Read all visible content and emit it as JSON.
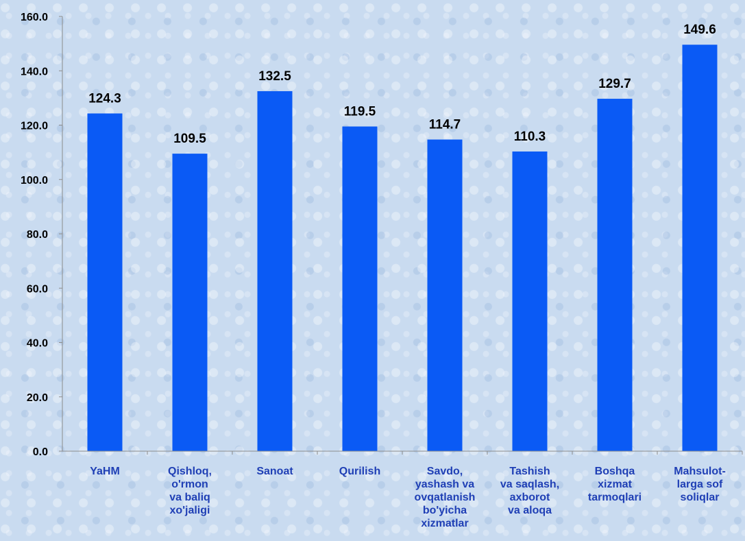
{
  "chart_data": {
    "type": "bar",
    "categories": [
      [
        "YaHM"
      ],
      [
        "Qishloq,",
        "o'rmon",
        "va baliq",
        "xo'jaligi"
      ],
      [
        "Sanoat"
      ],
      [
        "Qurilish"
      ],
      [
        "Savdo,",
        "yashash va",
        "ovqatlanish",
        "bo'yicha",
        "xizmatlar"
      ],
      [
        "Tashish",
        "va saqlash,",
        "axborot",
        "va aloqa"
      ],
      [
        "Boshqa",
        "xizmat",
        "tarmoqlari"
      ],
      [
        "Mahsulot-",
        "larga sof",
        "soliqlar"
      ]
    ],
    "values": [
      124.3,
      109.5,
      132.5,
      119.5,
      114.7,
      110.3,
      129.7,
      149.6
    ],
    "value_labels": [
      "124.3",
      "109.5",
      "132.5",
      "119.5",
      "114.7",
      "110.3",
      "129.7",
      "149.6"
    ],
    "y_ticks": [
      "0.0",
      "20.0",
      "40.0",
      "60.0",
      "80.0",
      "100.0",
      "120.0",
      "140.0",
      "160.0"
    ],
    "ylim": [
      0,
      160
    ],
    "grid": false,
    "bar_color": "#0a5af5",
    "axis_color": "#8c8c8c",
    "category_label_color": "#1f3fb5"
  }
}
